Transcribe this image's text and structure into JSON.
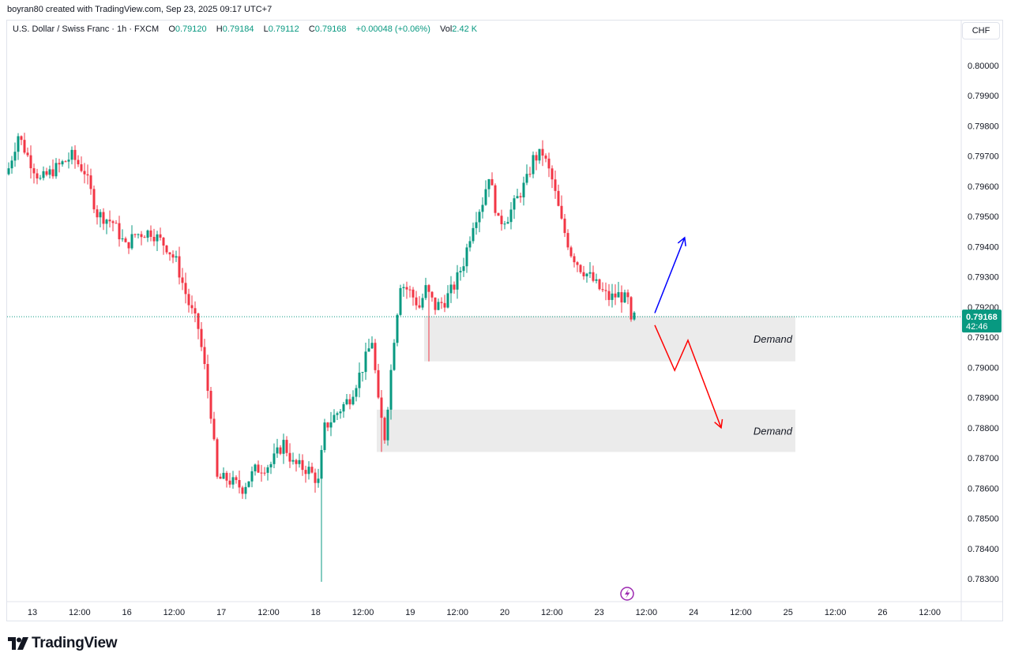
{
  "credit": "boyran80 created with TradingView.com, Sep 23, 2025 09:17 UTC+7",
  "legend": {
    "symbol": "U.S. Dollar / Swiss Franc · 1h · FXCM",
    "o_label": "O",
    "o_value": "0.79120",
    "h_label": "H",
    "h_value": "0.79184",
    "l_label": "L",
    "l_value": "0.79112",
    "c_label": "C",
    "c_value": "0.79168",
    "change": "+0.00048 (+0.06%)",
    "vol_label": "Vol",
    "vol_value": "2.42 K"
  },
  "currency": "CHF",
  "price_tag": {
    "price": "0.79168",
    "countdown": "42:46"
  },
  "logo_text": "TradingView",
  "colors": {
    "up": "#089981",
    "down": "#f23645",
    "zone": "#ebebeb",
    "blue_arrow": "#0000ff",
    "red_arrow": "#ff0000"
  },
  "chart_data": {
    "type": "candlestick",
    "title": "U.S. Dollar / Swiss Franc · 1h · FXCM",
    "ylim": [
      0.7826,
      0.8011
    ],
    "y_ticks": [
      "0.80000",
      "0.79900",
      "0.79800",
      "0.79700",
      "0.79600",
      "0.79500",
      "0.79400",
      "0.79300",
      "0.79200",
      "0.79100",
      "0.79000",
      "0.78900",
      "0.78800",
      "0.78700",
      "0.78600",
      "0.78500",
      "0.78400",
      "0.78300"
    ],
    "x_ticks": [
      "13",
      "12:00",
      "16",
      "12:00",
      "17",
      "12:00",
      "18",
      "12:00",
      "19",
      "12:00",
      "20",
      "12:00",
      "23",
      "12:00",
      "24",
      "12:00",
      "25",
      "12:00",
      "26",
      "12:00"
    ],
    "last_price": 0.79168,
    "bars": 199,
    "anchors": [
      [
        0,
        0.7966
      ],
      [
        3,
        0.7977
      ],
      [
        6,
        0.797
      ],
      [
        10,
        0.7962
      ],
      [
        15,
        0.7966
      ],
      [
        20,
        0.797
      ],
      [
        24,
        0.7965
      ],
      [
        28,
        0.7951
      ],
      [
        33,
        0.7948
      ],
      [
        37,
        0.794
      ],
      [
        40,
        0.7944
      ],
      [
        45,
        0.7945
      ],
      [
        50,
        0.794
      ],
      [
        53,
        0.7935
      ],
      [
        57,
        0.7921
      ],
      [
        60,
        0.7913
      ],
      [
        62,
        0.79
      ],
      [
        64,
        0.7885
      ],
      [
        66,
        0.7863
      ],
      [
        69,
        0.7863
      ],
      [
        74,
        0.786
      ],
      [
        78,
        0.7866
      ],
      [
        83,
        0.7868
      ],
      [
        87,
        0.7875
      ],
      [
        90,
        0.7868
      ],
      [
        95,
        0.7866
      ],
      [
        98,
        0.7862
      ],
      [
        100,
        0.788
      ],
      [
        104,
        0.7885
      ],
      [
        108,
        0.789
      ],
      [
        112,
        0.79
      ],
      [
        115,
        0.7909
      ],
      [
        117,
        0.7888
      ],
      [
        119,
        0.7877
      ],
      [
        122,
        0.791
      ],
      [
        124,
        0.7928
      ],
      [
        127,
        0.7925
      ],
      [
        130,
        0.792
      ],
      [
        132,
        0.7926
      ],
      [
        135,
        0.792
      ],
      [
        138,
        0.7922
      ],
      [
        141,
        0.7927
      ],
      [
        144,
        0.7935
      ],
      [
        147,
        0.7948
      ],
      [
        150,
        0.7955
      ],
      [
        152,
        0.7964
      ],
      [
        155,
        0.7948
      ],
      [
        158,
        0.795
      ],
      [
        161,
        0.7956
      ],
      [
        164,
        0.7962
      ],
      [
        166,
        0.7969
      ],
      [
        169,
        0.7971
      ],
      [
        172,
        0.7962
      ],
      [
        175,
        0.7948
      ],
      [
        178,
        0.7938
      ],
      [
        181,
        0.7933
      ],
      [
        184,
        0.793
      ],
      [
        187,
        0.7926
      ],
      [
        190,
        0.7923
      ],
      [
        193,
        0.7924
      ],
      [
        196,
        0.7922
      ],
      [
        197,
        0.7914
      ],
      [
        198,
        0.79168
      ]
    ],
    "spikes": [
      [
        99,
        0.7829
      ],
      [
        133,
        0.7902
      ],
      [
        118,
        0.7872
      ]
    ],
    "zones": [
      {
        "label": "Demand",
        "top": 0.7917,
        "bottom": 0.7902,
        "start_bar": 132
      },
      {
        "label": "Demand",
        "top": 0.7886,
        "bottom": 0.7872,
        "start_bar": 117
      }
    ],
    "projections": [
      {
        "color": "blue",
        "points": [
          [
            0.7918,
            0
          ],
          [
            0.7943,
            9
          ]
        ]
      },
      {
        "color": "red",
        "points": [
          [
            0.7914,
            0
          ],
          [
            0.7899,
            6
          ],
          [
            0.7909,
            10
          ],
          [
            0.788,
            20
          ]
        ]
      }
    ]
  }
}
